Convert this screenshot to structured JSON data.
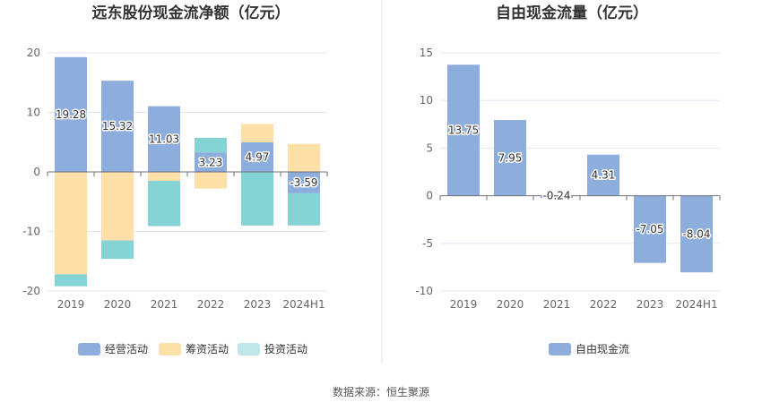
{
  "source_text": "数据来源：恒生聚源",
  "chart_data": [
    {
      "type": "bar",
      "stacked": true,
      "title": "远东股份现金流净额（亿元）",
      "categories": [
        "2019",
        "2020",
        "2021",
        "2022",
        "2023",
        "2024H1"
      ],
      "ylim": [
        -20,
        20
      ],
      "yticks": [
        20,
        10,
        0,
        -10,
        -20
      ],
      "grid": true,
      "legend_position": "bottom",
      "series": [
        {
          "name": "经营活动",
          "color": "#8daddc",
          "values": [
            19.28,
            15.32,
            11.03,
            3.23,
            4.97,
            -3.59
          ],
          "labels": [
            "19.28",
            "15.32",
            "11.03",
            "3.23",
            "4.97",
            "-3.59"
          ]
        },
        {
          "name": "筹资活动",
          "color": "#fde0a8",
          "values": [
            -17.2,
            -11.5,
            -1.5,
            -2.8,
            3.1,
            4.7
          ]
        },
        {
          "name": "投资活动",
          "color": "#bfe6e9",
          "bar_color": "#86d3d6",
          "values": [
            -2.0,
            -3.1,
            -7.6,
            2.5,
            -9.0,
            -5.4
          ]
        }
      ]
    },
    {
      "type": "bar",
      "title": "自由现金流量（亿元）",
      "categories": [
        "2019",
        "2020",
        "2021",
        "2022",
        "2023",
        "2024H1"
      ],
      "ylim": [
        -10,
        15
      ],
      "yticks": [
        15,
        10,
        5,
        0,
        -5,
        -10
      ],
      "grid": true,
      "legend_position": "bottom",
      "series": [
        {
          "name": "自由现金流",
          "color": "#8daddc",
          "values": [
            13.75,
            7.95,
            -0.24,
            4.31,
            -7.05,
            -8.04
          ],
          "labels": [
            "13.75",
            "7.95",
            "-0.24",
            "4.31",
            "-7.05",
            "-8.04"
          ]
        }
      ]
    }
  ]
}
